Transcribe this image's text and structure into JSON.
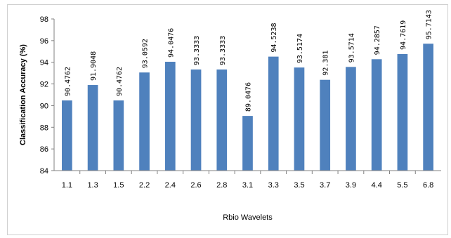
{
  "chart_data": {
    "type": "bar",
    "title": "",
    "xlabel": "Rbio Wavelets",
    "ylabel": "Classification  Accuracy  (%)",
    "ylim": [
      84,
      98
    ],
    "yticks": [
      84,
      86,
      88,
      90,
      92,
      94,
      96,
      98
    ],
    "categories": [
      "1.1",
      "1.3",
      "1.5",
      "2.2",
      "2.4",
      "2.6",
      "2.8",
      "3.1",
      "3.3",
      "3.5",
      "3.7",
      "3.9",
      "4.4",
      "5.5",
      "6.8"
    ],
    "values": [
      90.4762,
      91.9048,
      90.4762,
      93.0592,
      94.0476,
      93.3333,
      93.3333,
      89.0476,
      94.5238,
      93.5174,
      92.381,
      93.5714,
      94.2857,
      94.7619,
      95.7143
    ],
    "data_labels": [
      "90.4762",
      "91.9048",
      "90.4762",
      "93.0592",
      "94.0476",
      "93.3333",
      "93.3333",
      "89.0476",
      "94.5238",
      "93.5174",
      "92.381",
      "93.5714",
      "94.2857",
      "94.7619",
      "95.7143"
    ],
    "bar_color": "#4f81bd",
    "grid": false,
    "legend": "none"
  }
}
